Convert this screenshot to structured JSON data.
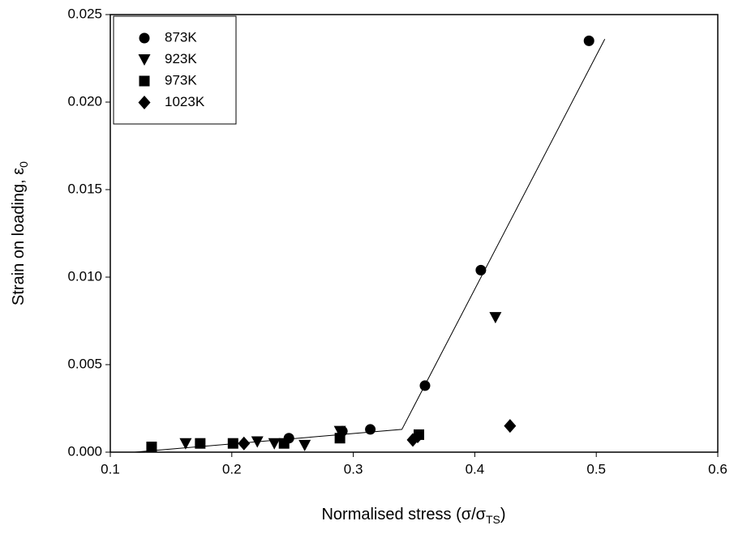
{
  "chart_data": {
    "type": "scatter",
    "xlabel": {
      "text": "Normalised stress (σ/σ",
      "sub": "TS",
      "end": ")"
    },
    "ylabel": {
      "text": "Strain on loading, ε",
      "sub": "0"
    },
    "xlim": [
      0.1,
      0.6
    ],
    "xticks": [
      0.1,
      0.2,
      0.3,
      0.4,
      0.5,
      0.6
    ],
    "ylim": [
      0,
      0.025
    ],
    "yticks": [
      {
        "value": 0,
        "label": "0.000"
      },
      {
        "value": 0.005,
        "label": "0.005"
      },
      {
        "value": 0.01,
        "label": "0.010"
      },
      {
        "value": 0.015,
        "label": "0.015"
      },
      {
        "value": 0.02,
        "label": "0.020"
      },
      {
        "value": 0.025,
        "label": "0.025"
      }
    ],
    "legend": "upper left",
    "series": [
      {
        "name": "873K",
        "color": "#000000",
        "marker": "circle",
        "x": [
          0.247,
          0.291,
          0.314,
          0.359,
          0.405,
          0.494
        ],
        "values": [
          0.0008,
          0.0012,
          0.0013,
          0.0038,
          0.0104,
          0.0235
        ]
      },
      {
        "name": "923K",
        "color": "#000000",
        "marker": "triangle-down",
        "x": [
          0.162,
          0.221,
          0.235,
          0.26,
          0.289,
          0.417
        ],
        "values": [
          0.0005,
          0.0006,
          0.0005,
          0.0004,
          0.0012,
          0.0077
        ]
      },
      {
        "name": "973K",
        "color": "#000000",
        "marker": "square",
        "x": [
          0.134,
          0.174,
          0.201,
          0.243,
          0.289,
          0.354
        ],
        "values": [
          0.0003,
          0.0005,
          0.0005,
          0.0005,
          0.0008,
          0.001
        ]
      },
      {
        "name": "1023K",
        "color": "#000000",
        "marker": "diamond",
        "x": [
          0.21,
          0.349,
          0.353,
          0.429
        ],
        "values": [
          0.0005,
          0.0007,
          0.0009,
          0.0015
        ]
      }
    ],
    "fit": {
      "color": "#000000",
      "x": [
        0.12,
        0.34,
        0.507
      ],
      "values": [
        0,
        0.0013,
        0.0236
      ]
    }
  }
}
